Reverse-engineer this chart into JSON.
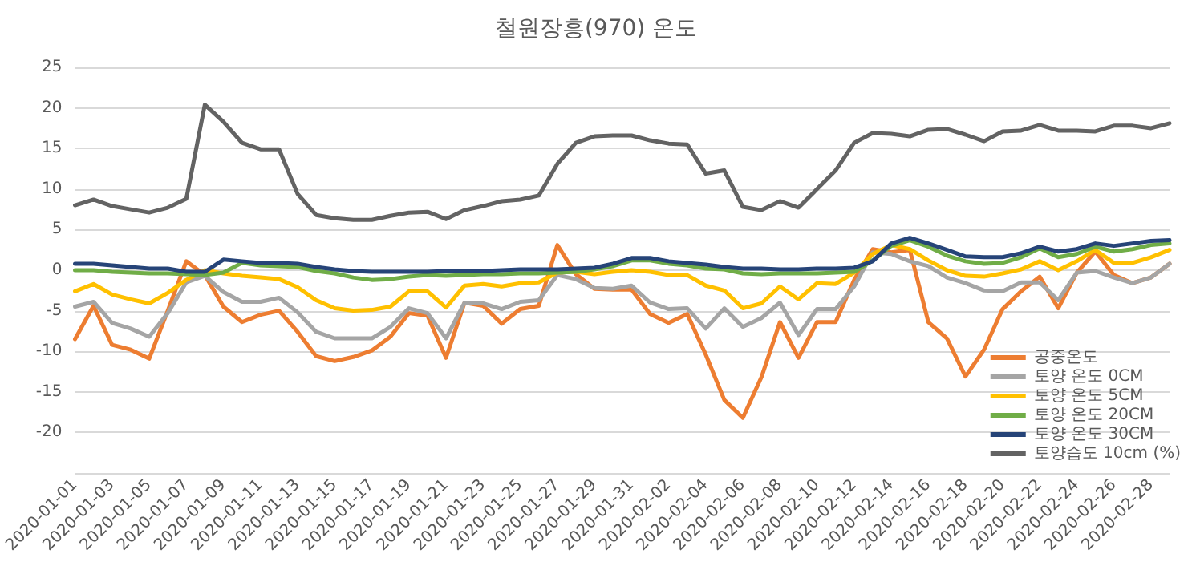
{
  "chart_data": {
    "type": "line",
    "title": "철원장흥(970) 온도",
    "categories": [
      "2020-01-01",
      null,
      "2020-01-03",
      null,
      "2020-01-05",
      null,
      "2020-01-07",
      null,
      "2020-01-09",
      null,
      "2020-01-11",
      null,
      "2020-01-13",
      null,
      "2020-01-15",
      null,
      "2020-01-17",
      null,
      "2020-01-19",
      null,
      "2020-01-21",
      null,
      "2020-01-23",
      null,
      "2020-01-25",
      null,
      "2020-01-27",
      null,
      "2020-01-29",
      null,
      "2020-01-31",
      null,
      "2020-02-02",
      null,
      "2020-02-04",
      null,
      "2020-02-06",
      null,
      "2020-02-08",
      null,
      "2020-02-10",
      null,
      "2020-02-12",
      null,
      "2020-02-14",
      null,
      "2020-02-16",
      null,
      "2020-02-18",
      null,
      "2020-02-20",
      null,
      "2020-02-22",
      null,
      "2020-02-24",
      null,
      "2020-02-26",
      null,
      "2020-02-28",
      null
    ],
    "series": [
      {
        "name": "공중온도",
        "color": "#ed7d31",
        "values": [
          -8.5,
          -4.4,
          -9.2,
          -9.8,
          -10.9,
          -5.0,
          1.1,
          -0.6,
          -4.5,
          -6.4,
          -5.5,
          -5.0,
          -7.6,
          -10.6,
          -11.2,
          -10.7,
          -9.9,
          -8.2,
          -5.3,
          -5.6,
          -10.8,
          -4.0,
          -4.4,
          -6.6,
          -4.8,
          -4.4,
          3.1,
          -0.5,
          -2.3,
          -2.4,
          -2.4,
          -5.4,
          -6.5,
          -5.4,
          -10.4,
          -16.0,
          -18.2,
          -13.2,
          -6.4,
          -10.8,
          -6.4,
          -6.4,
          -1.2,
          2.6,
          2.2,
          2.5,
          -6.4,
          -8.4,
          -13.1,
          -9.8,
          -4.8,
          -2.6,
          -0.8,
          -4.7,
          -0.3,
          2.3,
          -0.6,
          -1.6,
          -0.9,
          0.8
        ]
      },
      {
        "name": "토양 온도 0CM",
        "color": "#a5a5a5",
        "values": [
          -4.5,
          -3.9,
          -6.5,
          -7.2,
          -8.2,
          -5.3,
          -1.5,
          -0.7,
          -2.7,
          -3.9,
          -3.9,
          -3.4,
          -5.2,
          -7.6,
          -8.4,
          -8.4,
          -8.4,
          -7.0,
          -4.7,
          -5.3,
          -8.4,
          -4.0,
          -4.1,
          -4.8,
          -3.9,
          -3.7,
          -0.6,
          -1.1,
          -2.2,
          -2.3,
          -1.9,
          -4.0,
          -4.8,
          -4.7,
          -7.2,
          -4.7,
          -7.0,
          -5.9,
          -4.0,
          -8.0,
          -4.8,
          -4.8,
          -2.0,
          2.2,
          2.0,
          1.1,
          0.5,
          -0.9,
          -1.6,
          -2.5,
          -2.6,
          -1.5,
          -1.5,
          -3.7,
          -0.3,
          -0.1,
          -0.9,
          -1.6,
          -0.9,
          0.8
        ]
      },
      {
        "name": "토양 온도 5CM",
        "color": "#ffc000",
        "values": [
          -2.6,
          -1.7,
          -3.0,
          -3.6,
          -4.1,
          -2.8,
          -1.2,
          0,
          -0.4,
          -0.7,
          -0.9,
          -1.1,
          -2.1,
          -3.7,
          -4.7,
          -5.0,
          -4.9,
          -4.5,
          -2.6,
          -2.6,
          -4.6,
          -1.9,
          -1.7,
          -2.0,
          -1.6,
          -1.5,
          -0.3,
          -0.2,
          -0.5,
          -0.2,
          0,
          -0.2,
          -0.6,
          -0.6,
          -1.9,
          -2.5,
          -4.7,
          -4.1,
          -2.0,
          -3.6,
          -1.6,
          -1.7,
          -0.3,
          2.0,
          3.1,
          2.6,
          1.2,
          0,
          -0.7,
          -0.8,
          -0.4,
          0.1,
          1.1,
          0,
          1.1,
          2.5,
          0.9,
          0.9,
          1.6,
          2.5
        ]
      },
      {
        "name": "토양 온도 20CM",
        "color": "#70ad47",
        "values": [
          0,
          0,
          -0.2,
          -0.3,
          -0.4,
          -0.4,
          -0.5,
          -0.6,
          -0.3,
          0.9,
          0.6,
          0.5,
          0.4,
          -0.1,
          -0.4,
          -0.9,
          -1.2,
          -1.1,
          -0.8,
          -0.6,
          -0.7,
          -0.6,
          -0.5,
          -0.5,
          -0.4,
          -0.4,
          -0.3,
          -0.2,
          0.1,
          0.5,
          1.2,
          1.2,
          0.8,
          0.6,
          0.2,
          0.1,
          -0.4,
          -0.5,
          -0.4,
          -0.4,
          -0.4,
          -0.3,
          -0.2,
          1.2,
          3.0,
          3.7,
          2.9,
          1.8,
          1.1,
          0.8,
          0.9,
          1.6,
          2.7,
          1.6,
          2.0,
          2.9,
          2.3,
          2.6,
          3.1,
          3.3
        ]
      },
      {
        "name": "토양 온도 30CM",
        "color": "#264478",
        "values": [
          0.8,
          0.8,
          0.6,
          0.4,
          0.2,
          0.2,
          -0.2,
          -0.2,
          1.3,
          1.1,
          0.9,
          0.9,
          0.8,
          0.4,
          0.1,
          -0.1,
          -0.2,
          -0.2,
          -0.2,
          -0.2,
          -0.1,
          -0.1,
          -0.1,
          0,
          0.1,
          0.1,
          0.1,
          0.2,
          0.3,
          0.8,
          1.5,
          1.5,
          1.1,
          0.9,
          0.7,
          0.4,
          0.2,
          0.2,
          0.1,
          0.1,
          0.2,
          0.2,
          0.3,
          1.1,
          3.3,
          4.0,
          3.3,
          2.5,
          1.7,
          1.6,
          1.6,
          2.1,
          2.9,
          2.3,
          2.6,
          3.3,
          3.0,
          3.3,
          3.6,
          3.7
        ]
      },
      {
        "name": "토양습도 10cm (%)",
        "color": "#636363",
        "values": [
          8.0,
          8.7,
          7.9,
          7.5,
          7.1,
          7.7,
          8.8,
          20.4,
          18.3,
          15.7,
          14.9,
          14.9,
          9.4,
          6.8,
          6.4,
          6.2,
          6.2,
          6.7,
          7.1,
          7.2,
          6.3,
          7.4,
          7.9,
          8.5,
          8.7,
          9.2,
          13.1,
          15.7,
          16.5,
          16.6,
          16.6,
          16.0,
          15.6,
          15.5,
          11.9,
          12.3,
          7.8,
          7.4,
          8.5,
          7.7,
          10.0,
          12.3,
          15.7,
          16.9,
          16.8,
          16.5,
          17.3,
          17.4,
          16.7,
          15.9,
          17.1,
          17.2,
          17.9,
          17.2,
          17.2,
          17.1,
          17.8,
          17.8,
          17.5,
          18.1
        ]
      }
    ],
    "ylim": [
      -25,
      25
    ],
    "yticks": [
      {
        "value": -25,
        "label": null
      },
      -20,
      -15,
      -10,
      -5,
      0,
      5,
      10,
      15,
      20,
      25
    ],
    "grid": "y",
    "legend": "bottom right",
    "marker": "none",
    "line_style": "solid"
  }
}
